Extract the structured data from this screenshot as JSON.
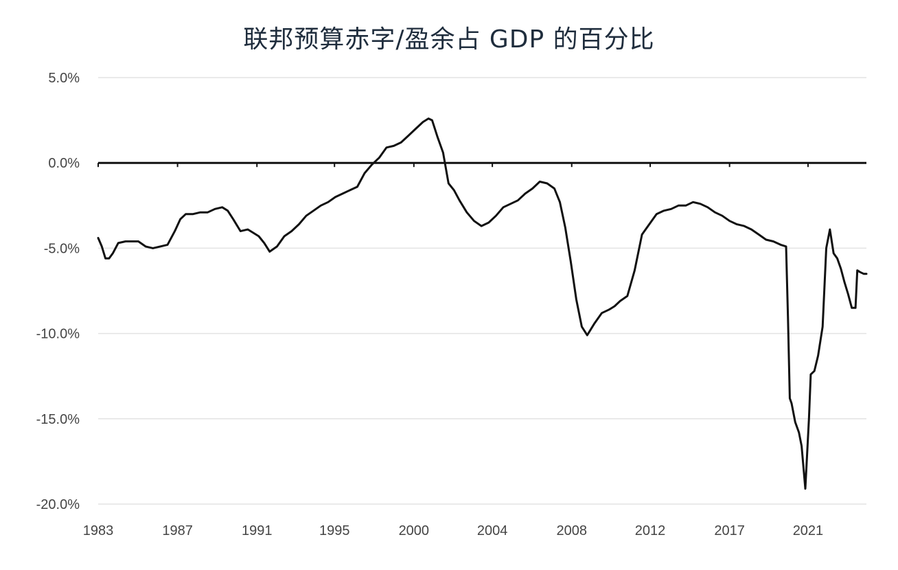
{
  "chart_data": {
    "type": "line",
    "title": "联邦预算赤字/盈余占 GDP 的百分比",
    "xlabel": "",
    "ylabel": "",
    "xlim": [
      1983,
      2025.1
    ],
    "ylim": [
      -20,
      5
    ],
    "x_ticks": [
      {
        "label": "1983",
        "value": 1983
      },
      {
        "label": "1987",
        "value": 1987.35
      },
      {
        "label": "1991",
        "value": 1991.7
      },
      {
        "label": "1995",
        "value": 1995.95
      },
      {
        "label": "2000",
        "value": 2000.3
      },
      {
        "label": "2004",
        "value": 2004.6
      },
      {
        "label": "2008",
        "value": 2008.95
      },
      {
        "label": "2012",
        "value": 2013.25
      },
      {
        "label": "2017",
        "value": 2017.6
      },
      {
        "label": "2021",
        "value": 2021.9
      }
    ],
    "y_ticks": [
      {
        "label": "5.0%",
        "value": 5
      },
      {
        "label": "0.0%",
        "value": 0
      },
      {
        "label": "-5.0%",
        "value": -5
      },
      {
        "label": "-10.0%",
        "value": -10
      },
      {
        "label": "-15.0%",
        "value": -15
      },
      {
        "label": "-20.0%",
        "value": -20
      }
    ],
    "grid": true,
    "legend": "none",
    "series": [
      {
        "color": "#111111",
        "x": [
          1983.0,
          1983.2,
          1983.4,
          1983.6,
          1983.8,
          1984.1,
          1984.5,
          1984.8,
          1985.2,
          1985.6,
          1986.0,
          1986.4,
          1986.8,
          1987.2,
          1987.5,
          1987.8,
          1988.2,
          1988.6,
          1989.0,
          1989.4,
          1989.8,
          1990.1,
          1990.4,
          1990.8,
          1991.2,
          1991.5,
          1991.8,
          1992.1,
          1992.4,
          1992.8,
          1993.2,
          1993.6,
          1994.0,
          1994.4,
          1994.8,
          1995.2,
          1995.6,
          1996.0,
          1996.4,
          1996.8,
          1997.2,
          1997.6,
          1998.0,
          1998.4,
          1998.8,
          1999.2,
          1999.6,
          2000.0,
          2000.4,
          2000.8,
          2001.1,
          2001.3,
          2001.6,
          2001.9,
          2002.2,
          2002.5,
          2002.8,
          2003.2,
          2003.6,
          2004.0,
          2004.4,
          2004.8,
          2005.2,
          2005.6,
          2006.0,
          2006.4,
          2006.8,
          2007.2,
          2007.6,
          2008.0,
          2008.3,
          2008.6,
          2008.9,
          2009.2,
          2009.5,
          2009.8,
          2010.2,
          2010.6,
          2011.0,
          2011.3,
          2011.6,
          2012.0,
          2012.4,
          2012.8,
          2013.2,
          2013.6,
          2014.0,
          2014.4,
          2014.8,
          2015.2,
          2015.6,
          2016.0,
          2016.4,
          2016.8,
          2017.2,
          2017.6,
          2018.0,
          2018.4,
          2018.8,
          2019.2,
          2019.6,
          2020.0,
          2020.4,
          2020.7,
          2020.8,
          2020.9,
          2021.0,
          2021.2,
          2021.4,
          2021.55,
          2021.75,
          2021.95,
          2022.05,
          2022.25,
          2022.45,
          2022.7,
          2022.9,
          2023.1,
          2023.3,
          2023.5,
          2023.7,
          2023.9,
          2024.1,
          2024.3,
          2024.5,
          2024.6,
          2024.75,
          2024.95,
          2025.1
        ],
        "y": [
          -4.4,
          -4.9,
          -5.6,
          -5.6,
          -5.3,
          -4.7,
          -4.6,
          -4.6,
          -4.6,
          -4.9,
          -5.0,
          -4.9,
          -4.8,
          -4.0,
          -3.3,
          -3.0,
          -3.0,
          -2.9,
          -2.9,
          -2.7,
          -2.6,
          -2.8,
          -3.3,
          -4.0,
          -3.9,
          -4.1,
          -4.3,
          -4.7,
          -5.2,
          -4.9,
          -4.3,
          -4.0,
          -3.6,
          -3.1,
          -2.8,
          -2.5,
          -2.3,
          -2.0,
          -1.8,
          -1.6,
          -1.4,
          -0.6,
          -0.1,
          0.3,
          0.9,
          1.0,
          1.2,
          1.6,
          2.0,
          2.4,
          2.6,
          2.5,
          1.5,
          0.6,
          -1.2,
          -1.6,
          -2.2,
          -2.9,
          -3.4,
          -3.7,
          -3.5,
          -3.1,
          -2.6,
          -2.4,
          -2.2,
          -1.8,
          -1.5,
          -1.1,
          -1.2,
          -1.5,
          -2.3,
          -3.8,
          -5.8,
          -8.0,
          -9.6,
          -10.1,
          -9.4,
          -8.8,
          -8.6,
          -8.4,
          -8.1,
          -7.8,
          -6.3,
          -4.2,
          -3.6,
          -3.0,
          -2.8,
          -2.7,
          -2.5,
          -2.5,
          -2.3,
          -2.4,
          -2.6,
          -2.9,
          -3.1,
          -3.4,
          -3.6,
          -3.7,
          -3.9,
          -4.2,
          -4.5,
          -4.6,
          -4.8,
          -4.9,
          -9.0,
          -13.8,
          -14.1,
          -15.2,
          -15.8,
          -16.6,
          -19.1,
          -15.0,
          -12.4,
          -12.2,
          -11.3,
          -9.6,
          -5.0,
          -3.9,
          -5.3,
          -5.6,
          -6.2,
          -7.0,
          -7.7,
          -8.5,
          -8.5,
          -6.3,
          -6.4,
          -6.5,
          -6.5
        ]
      }
    ]
  }
}
